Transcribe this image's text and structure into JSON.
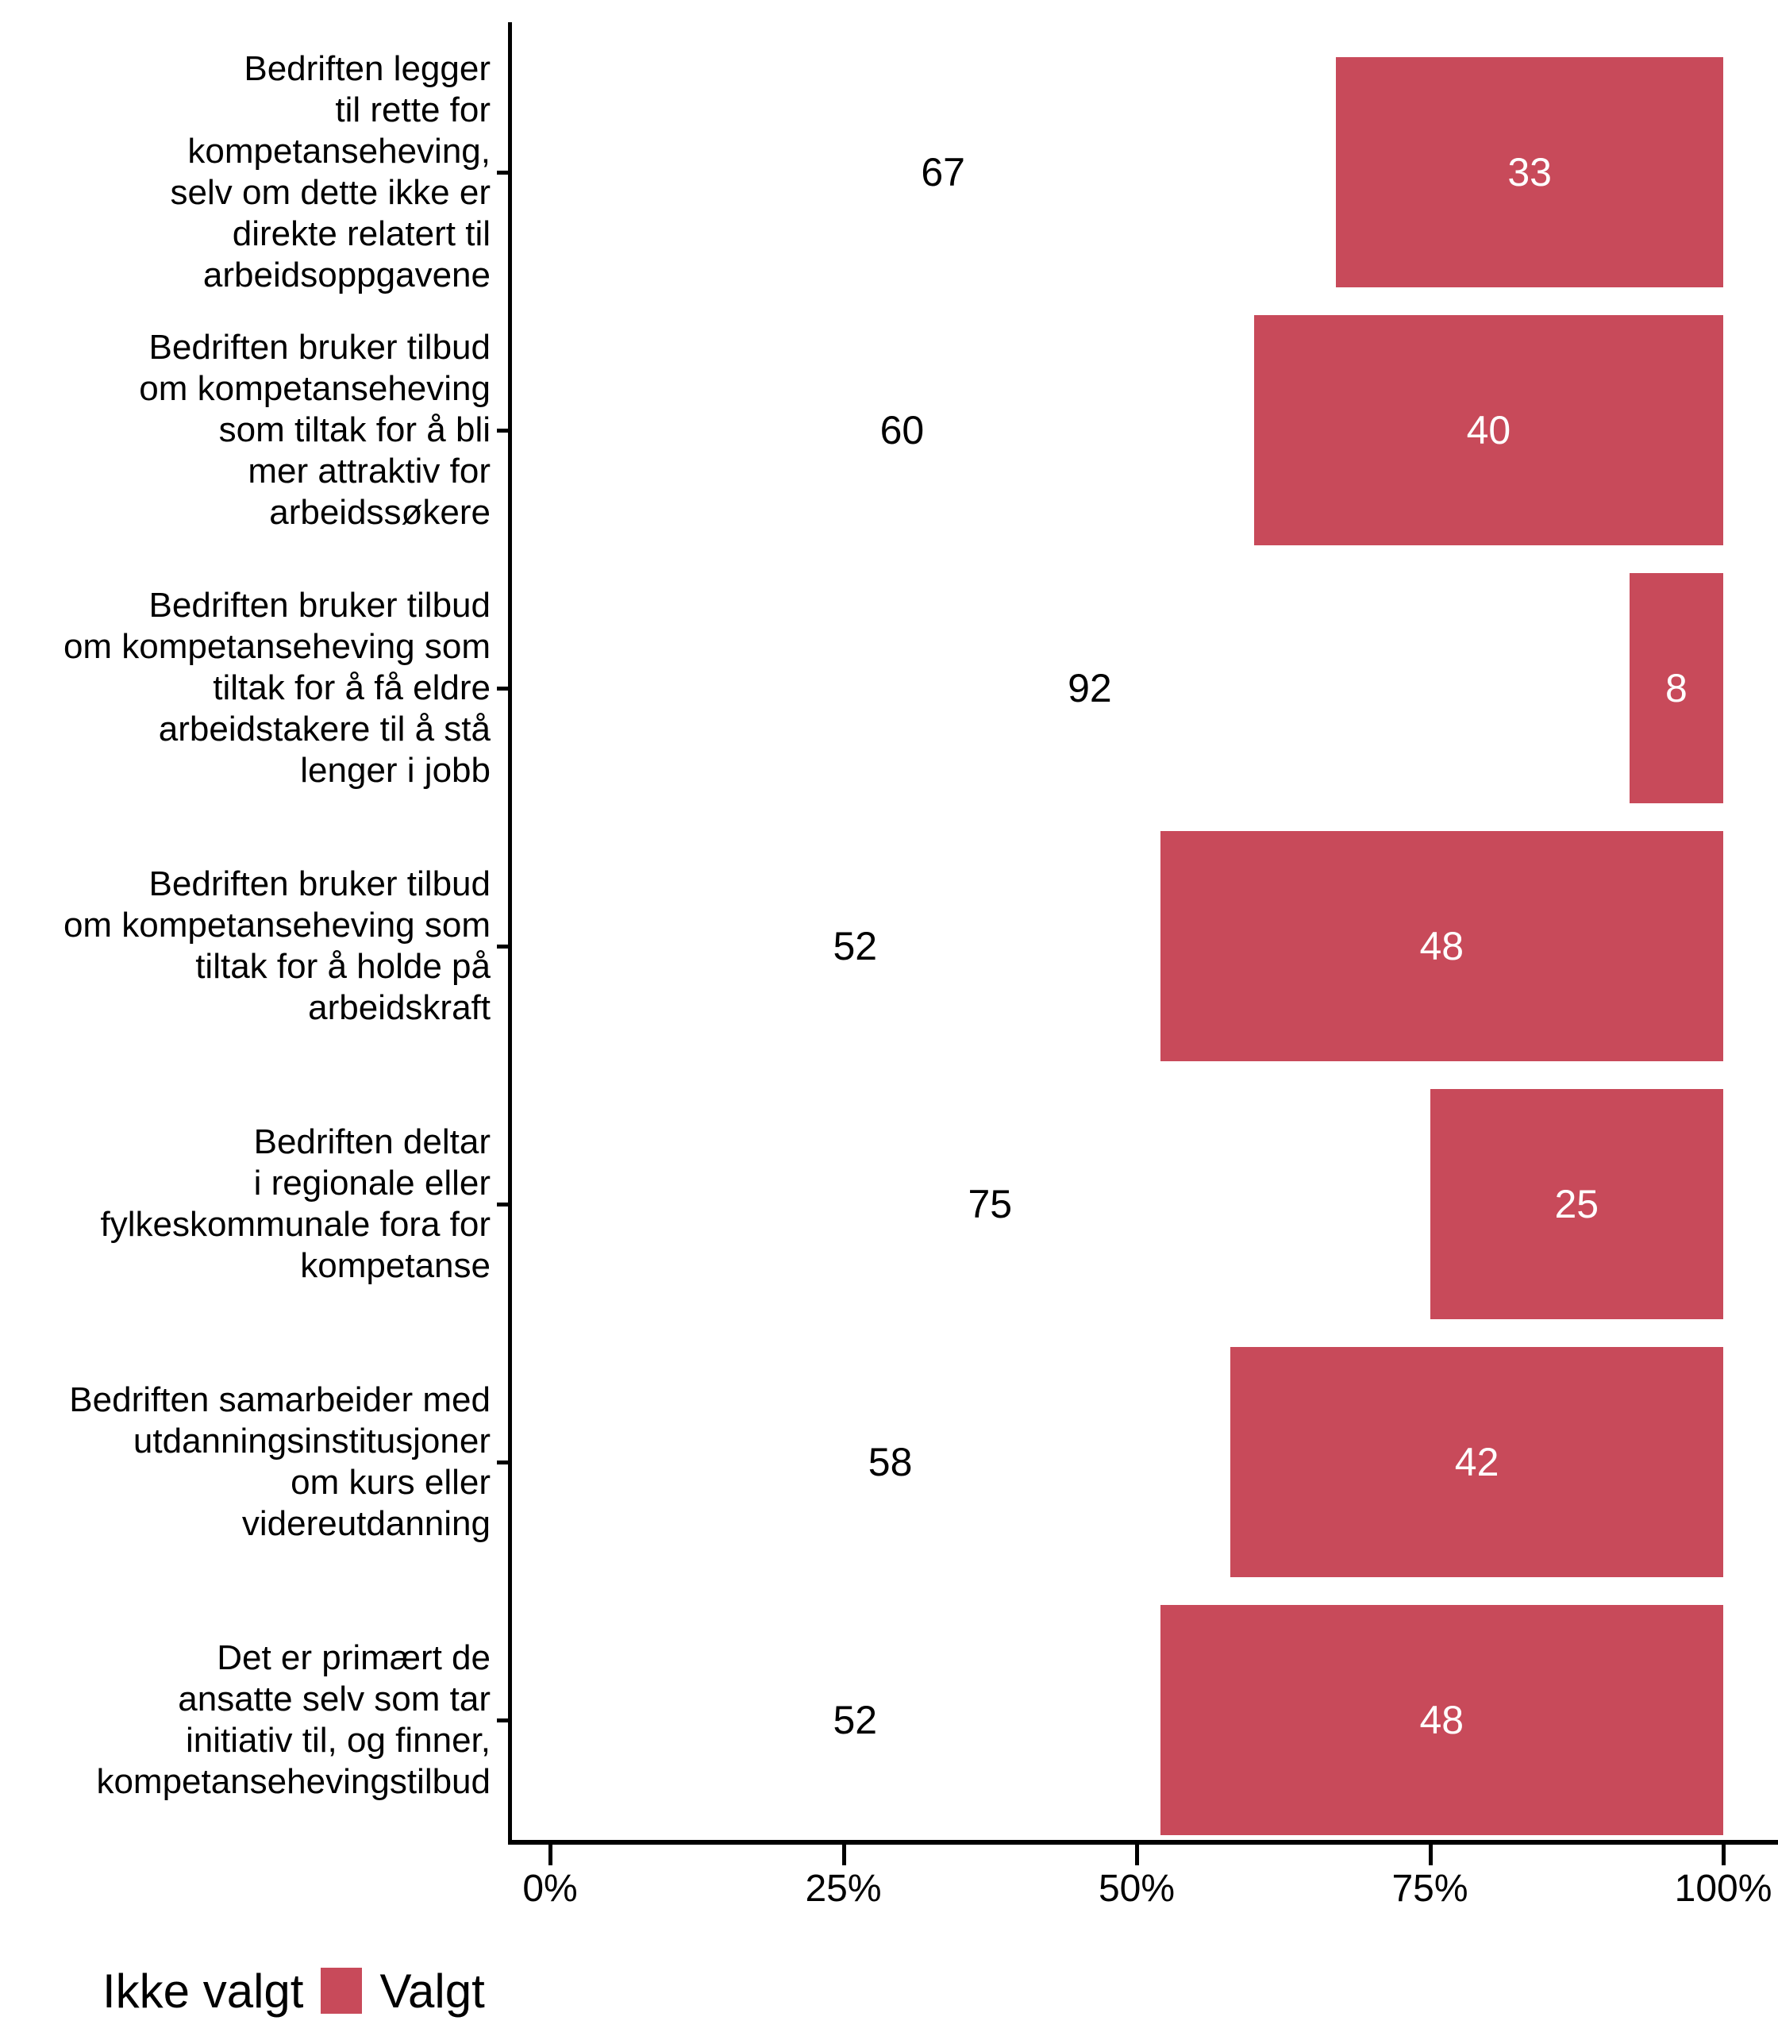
{
  "chart_data": {
    "type": "bar",
    "orientation": "horizontal",
    "stacked": true,
    "unit": "percent",
    "title": "",
    "xlabel": "",
    "ylabel": "",
    "xlim": [
      0,
      100
    ],
    "grid": false,
    "categories": [
      "Bedriften legger til rette for kompetanseheving, selv om dette ikke er direkte relatert til arbeidsoppgavene",
      "Bedriften bruker tilbud om kompetanseheving som tiltak for å bli mer attraktiv for arbeidssøkere",
      "Bedriften bruker tilbud om kompetanseheving som tiltak for å få eldre arbeidstakere til å stå lenger i jobb",
      "Bedriften bruker tilbud om kompetanseheving som tiltak for å holde på arbeidskraft",
      "Bedriften deltar i regionale eller fylkeskommunale fora for kompetanse",
      "Bedriften samarbeider med utdanningsinstitusjoner om kurs eller videreutdanning",
      "Det er primært de ansatte selv som tar initiativ til, og finner, kompetansehevingstilbud"
    ],
    "categories_wrapped": [
      [
        "Bedriften legger",
        "til rette for",
        "kompetanseheving,",
        "selv om dette ikke er",
        "direkte relatert til",
        "arbeidsoppgavene"
      ],
      [
        "Bedriften bruker tilbud",
        "om kompetanseheving",
        "som tiltak for å bli",
        "mer attraktiv for",
        "arbeidssøkere"
      ],
      [
        "Bedriften bruker tilbud",
        "om kompetanseheving som",
        "tiltak for å få eldre",
        "arbeidstakere til å stå",
        "lenger i jobb"
      ],
      [
        "Bedriften bruker tilbud",
        "om kompetanseheving som",
        "tiltak for å holde på",
        "arbeidskraft"
      ],
      [
        "Bedriften deltar",
        "i regionale eller",
        "fylkeskommunale fora for",
        "kompetanse"
      ],
      [
        "Bedriften samarbeider med",
        "utdanningsinstitusjoner",
        "om kurs eller",
        "videreutdanning"
      ],
      [
        "Det er primært de",
        "ansatte selv som tar",
        "initiativ til, og finner,",
        "kompetansehevingstilbud"
      ]
    ],
    "series": [
      {
        "name": "Ikke valgt",
        "color": "#FFFFFF",
        "values": [
          67,
          60,
          92,
          52,
          75,
          58,
          52
        ]
      },
      {
        "name": "Valgt",
        "color": "#C84A5A",
        "values": [
          33,
          40,
          8,
          48,
          25,
          42,
          48
        ]
      }
    ],
    "x_ticks": [
      {
        "label": "0%",
        "value": 0
      },
      {
        "label": "25%",
        "value": 25
      },
      {
        "label": "50%",
        "value": 50
      },
      {
        "label": "75%",
        "value": 75
      },
      {
        "label": "100%",
        "value": 100
      }
    ],
    "legend": {
      "position": "bottom-left",
      "items": [
        {
          "label": "Ikke valgt",
          "swatch_color": "#FFFFFF"
        },
        {
          "label": "Valgt",
          "swatch_color": "#C84A5A"
        }
      ]
    },
    "colors": {
      "axis": "#000000",
      "text": "#000000",
      "valgt_red": "#C84A5A",
      "background": "#FFFFFF"
    }
  }
}
